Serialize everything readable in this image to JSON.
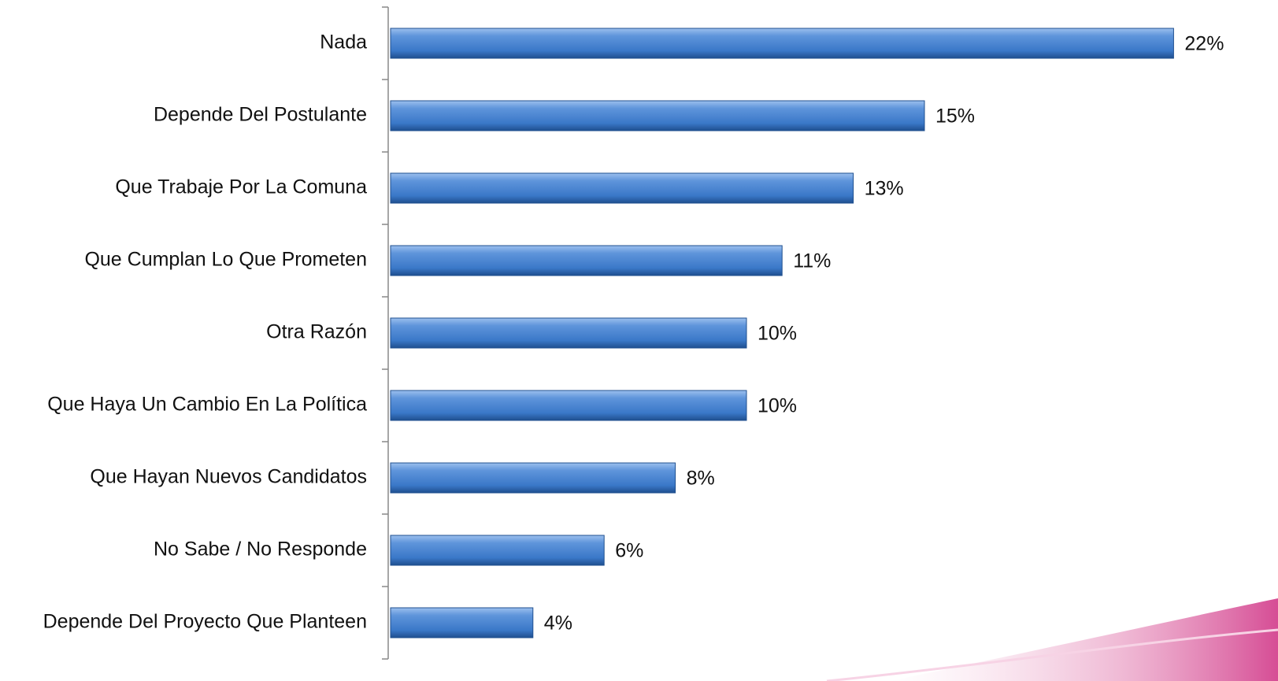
{
  "chart_data": {
    "type": "bar",
    "orientation": "horizontal",
    "categories": [
      "Nada",
      "Depende Del Postulante",
      "Que Trabaje Por La Comuna",
      "Que Cumplan Lo Que Prometen",
      "Otra Razón",
      "Que Haya Un Cambio En La Política",
      "Que Hayan Nuevos Candidatos",
      "No Sabe / No Responde",
      "Depende Del Proyecto Que Planteen"
    ],
    "values": [
      22,
      15,
      13,
      11,
      10,
      10,
      8,
      6,
      4
    ],
    "value_labels": [
      "22%",
      "15%",
      "13%",
      "11%",
      "10%",
      "10%",
      "8%",
      "6%",
      "4%"
    ],
    "color": "#3a78c8"
  }
}
